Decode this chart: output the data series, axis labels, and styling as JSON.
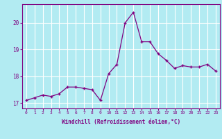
{
  "x": [
    0,
    1,
    2,
    3,
    4,
    5,
    6,
    7,
    8,
    9,
    10,
    11,
    12,
    13,
    14,
    15,
    16,
    17,
    18,
    19,
    20,
    21,
    22,
    23
  ],
  "y": [
    17.1,
    17.2,
    17.3,
    17.25,
    17.35,
    17.6,
    17.6,
    17.55,
    17.5,
    17.1,
    18.1,
    18.45,
    20.0,
    20.4,
    19.3,
    19.3,
    18.85,
    18.6,
    18.3,
    18.4,
    18.35,
    18.35,
    18.45,
    18.2
  ],
  "xlabel": "Windchill (Refroidissement éolien,°C)",
  "ylim": [
    16.8,
    20.7
  ],
  "xlim": [
    -0.5,
    23.5
  ],
  "yticks": [
    17,
    18,
    19,
    20
  ],
  "xticks": [
    0,
    1,
    2,
    3,
    4,
    5,
    6,
    7,
    8,
    9,
    10,
    11,
    12,
    13,
    14,
    15,
    16,
    17,
    18,
    19,
    20,
    21,
    22,
    23
  ],
  "line_color": "#800080",
  "marker": "+",
  "bg_color": "#b2ebf2",
  "grid_color": "#ffffff",
  "tick_color": "#800080",
  "label_color": "#800080"
}
